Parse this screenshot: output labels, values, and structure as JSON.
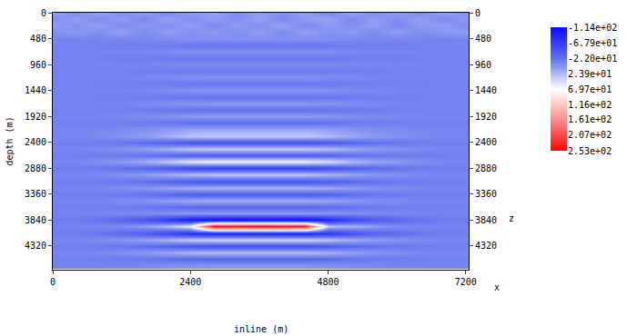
{
  "chart_data": {
    "type": "heatmap",
    "xlabel": "inline (m)",
    "ylabel": "depth (m)",
    "x_name": "x",
    "y_name": "z",
    "xlim": [
      0,
      7250
    ],
    "xticks": [
      0,
      2400,
      4800,
      7200
    ],
    "ylim": [
      0,
      4760
    ],
    "yticks": [
      0,
      480,
      960,
      1440,
      1920,
      2400,
      2880,
      3360,
      3840,
      4320
    ],
    "x": [
      0,
      400,
      800,
      1200,
      1600,
      2000,
      2400,
      2800,
      3200,
      3600,
      4000,
      4400,
      4800,
      5200,
      5600,
      6000,
      6400,
      6800,
      7200
    ],
    "y": [
      0,
      120,
      240,
      360,
      480,
      600,
      720,
      840,
      960,
      1080,
      1200,
      1320,
      1440,
      1560,
      1680,
      1800,
      1920,
      2040,
      2160,
      2280,
      2400,
      2520,
      2640,
      2760,
      2880,
      3000,
      3120,
      3240,
      3360,
      3480,
      3600,
      3720,
      3840,
      3960,
      4080,
      4200,
      4320,
      4440,
      4560,
      4680
    ],
    "cells": [
      [
        8,
        -6,
        10,
        -4,
        6,
        -8,
        4,
        10,
        -6,
        8,
        -4,
        6,
        -8,
        10,
        -4,
        6,
        -6,
        8,
        -2
      ],
      [
        -4,
        8,
        -6,
        6,
        -8,
        10,
        -4,
        6,
        -2,
        8,
        -6,
        4,
        10,
        -8,
        6,
        -4,
        8,
        -6,
        4
      ],
      [
        6,
        -2,
        8,
        -6,
        4,
        -4,
        8,
        -8,
        6,
        -4,
        10,
        -6,
        4,
        -2,
        8,
        -8,
        4,
        6,
        -4
      ],
      [
        -2,
        4,
        -4,
        8,
        -6,
        6,
        -2,
        4,
        -4,
        6,
        -6,
        8,
        -2,
        4,
        -6,
        6,
        -4,
        2,
        6
      ],
      [
        -10,
        -10,
        -9,
        -8,
        -7,
        -5,
        -3,
        -2,
        -2,
        -2,
        -2,
        -2,
        -4,
        -6,
        -8,
        -8,
        -9,
        -10,
        -10
      ],
      [
        -10,
        -10,
        -11,
        -12,
        -13,
        -15,
        -17,
        -18,
        -18,
        -18,
        -18,
        -18,
        -16,
        -14,
        -12,
        -12,
        -11,
        -10,
        -10
      ],
      [
        -10,
        -10,
        -9,
        -8,
        -7,
        -5,
        -3,
        -2,
        -2,
        -2,
        -2,
        -2,
        -4,
        -6,
        -8,
        -8,
        -9,
        -10,
        -10
      ],
      [
        -10,
        -10,
        -11,
        -12,
        -13,
        -15,
        -17,
        -18,
        -18,
        -18,
        -18,
        -18,
        -16,
        -14,
        -12,
        -12,
        -11,
        -10,
        -10
      ],
      [
        -10,
        -10,
        -9,
        -9,
        -8,
        -6,
        -5,
        -4,
        -4,
        -4,
        -4,
        -4,
        -5,
        -7,
        -8,
        -9,
        -9,
        -10,
        -10
      ],
      [
        -10,
        -10,
        -11,
        -11,
        -12,
        -14,
        -15,
        -16,
        -16,
        -16,
        -16,
        -16,
        -15,
        -13,
        -12,
        -11,
        -11,
        -10,
        -10
      ],
      [
        -10,
        -10,
        -9,
        -8,
        -7,
        -5,
        -3,
        -2,
        -2,
        -2,
        -2,
        -2,
        -4,
        -6,
        -8,
        -8,
        -9,
        -10,
        -10
      ],
      [
        -10,
        -10,
        -11,
        -12,
        -13,
        -15,
        -17,
        -18,
        -18,
        -18,
        -18,
        -18,
        -16,
        -14,
        -12,
        -12,
        -11,
        -10,
        -10
      ],
      [
        -10,
        -10,
        -9,
        -8,
        -7,
        -4,
        -1,
        0,
        0,
        0,
        0,
        0,
        -2,
        -5,
        -7,
        -8,
        -9,
        -10,
        -10
      ],
      [
        -10,
        -10,
        -11,
        -12,
        -14,
        -16,
        -19,
        -20,
        -20,
        -20,
        -20,
        -20,
        -18,
        -15,
        -13,
        -12,
        -11,
        -10,
        -10
      ],
      [
        -9,
        -9,
        -9,
        -8,
        -6,
        -3,
        1,
        2,
        2,
        2,
        2,
        2,
        0,
        -4,
        -6,
        -8,
        -9,
        -9,
        -9
      ],
      [
        -11,
        -11,
        -11,
        -12,
        -14,
        -17,
        -21,
        -22,
        -22,
        -22,
        -22,
        -22,
        -20,
        -16,
        -14,
        -12,
        -11,
        -11,
        -11
      ],
      [
        -9,
        -9,
        -9,
        -7,
        -5,
        -2,
        3,
        4,
        4,
        4,
        4,
        4,
        1,
        -3,
        -6,
        -7,
        -9,
        -9,
        -9
      ],
      [
        -11,
        -11,
        -11,
        -13,
        -15,
        -18,
        -23,
        -24,
        -24,
        -24,
        -24,
        -24,
        -21,
        -17,
        -14,
        -13,
        -11,
        -11,
        -11
      ],
      [
        -9,
        -9,
        -8,
        -6,
        -3,
        2,
        8,
        10,
        10,
        10,
        10,
        10,
        6,
        0,
        -4,
        -6,
        -8,
        -9,
        -9
      ],
      [
        -8,
        -8,
        -6,
        -1,
        6,
        17,
        31,
        35,
        35,
        35,
        35,
        35,
        26,
        13,
        4,
        -1,
        -6,
        -8,
        -8
      ],
      [
        -12,
        -12,
        -14,
        -18,
        -24,
        -34,
        -46,
        -50,
        -50,
        -50,
        -50,
        -50,
        -42,
        -30,
        -22,
        -18,
        -14,
        -12,
        -12
      ],
      [
        -8,
        -8,
        -6,
        -1,
        6,
        17,
        31,
        35,
        35,
        35,
        35,
        35,
        26,
        13,
        4,
        -1,
        -6,
        -8,
        -8
      ],
      [
        -12,
        -12,
        -13,
        -16,
        -21,
        -28,
        -37,
        -40,
        -40,
        -40,
        -40,
        -40,
        -34,
        -25,
        -19,
        -16,
        -13,
        -12,
        -12
      ],
      [
        -7,
        -7,
        -3,
        4,
        15,
        32,
        53,
        60,
        60,
        60,
        60,
        60,
        46,
        25,
        11,
        4,
        -3,
        -7,
        -7
      ],
      [
        -13,
        -13,
        -16,
        -21,
        -29,
        -43,
        -60,
        -65,
        -65,
        -65,
        -65,
        -65,
        -54,
        -38,
        -27,
        -21,
        -16,
        -13,
        -13
      ],
      [
        -8,
        -8,
        -6,
        -2,
        4,
        14,
        26,
        30,
        30,
        30,
        30,
        30,
        22,
        10,
        2,
        -2,
        -6,
        -8,
        -8
      ],
      [
        -12,
        -12,
        -14,
        -17,
        -22,
        -31,
        -42,
        -45,
        -45,
        -45,
        -45,
        -45,
        -38,
        -28,
        -21,
        -17,
        -14,
        -12,
        -12
      ],
      [
        -9,
        -9,
        -7,
        -4,
        1,
        8,
        17,
        20,
        20,
        20,
        20,
        20,
        14,
        5,
        -1,
        -4,
        -7,
        -9,
        -9
      ],
      [
        -12,
        -12,
        -13,
        -16,
        -21,
        -28,
        -37,
        -40,
        -40,
        -40,
        -40,
        -40,
        -34,
        -25,
        -19,
        -16,
        -13,
        -12,
        -12
      ],
      [
        -9,
        -9,
        -8,
        -5,
        -1,
        5,
        13,
        15,
        15,
        15,
        15,
        15,
        10,
        3,
        -3,
        -5,
        -8,
        -9,
        -9
      ],
      [
        -11,
        -11,
        -12,
        -14,
        -17,
        -22,
        -28,
        -30,
        -30,
        -30,
        -30,
        -30,
        -26,
        -20,
        -16,
        -14,
        -12,
        -11,
        -11
      ],
      [
        -9,
        -9,
        -9,
        -7,
        -5,
        -1,
        4,
        5,
        5,
        5,
        5,
        5,
        2,
        -3,
        -6,
        -7,
        -9,
        -9,
        -9
      ],
      [
        -15,
        -15,
        -20,
        -30,
        -45,
        -70,
        -100,
        -110,
        -110,
        -110,
        -110,
        -110,
        -90,
        -60,
        -40,
        -30,
        -20,
        -15,
        -15
      ],
      [
        -10,
        -10,
        -8,
        -5,
        5,
        25,
        60,
        250,
        245,
        253,
        248,
        240,
        30,
        20,
        5,
        -5,
        -8,
        -10,
        -10
      ],
      [
        -14,
        -14,
        -18,
        -26,
        -38,
        -58,
        -82,
        -90,
        -90,
        -90,
        -90,
        -90,
        -74,
        -50,
        -34,
        -26,
        -18,
        -14,
        -14
      ],
      [
        -8,
        -8,
        -5,
        0,
        8,
        20,
        35,
        40,
        40,
        40,
        40,
        40,
        30,
        15,
        5,
        0,
        -5,
        -8,
        -8
      ],
      [
        -12,
        -12,
        -14,
        -18,
        -24,
        -34,
        -46,
        -50,
        -50,
        -50,
        -50,
        -50,
        -42,
        -30,
        -22,
        -18,
        -14,
        -12,
        -12
      ],
      [
        -8,
        -8,
        -7,
        -3,
        2,
        11,
        22,
        25,
        25,
        25,
        25,
        25,
        18,
        8,
        1,
        -3,
        -7,
        -8,
        -8
      ],
      [
        -11,
        -11,
        -12,
        -14,
        -17,
        -22,
        -28,
        -30,
        -30,
        -30,
        -30,
        -30,
        -26,
        -20,
        -16,
        -14,
        -12,
        -11,
        -11
      ],
      [
        -10,
        -10,
        -9,
        -8,
        -7,
        -4,
        -1,
        0,
        0,
        0,
        0,
        0,
        -2,
        -5,
        -7,
        -8,
        -9,
        -10,
        -10
      ]
    ],
    "colorbar": {
      "range": [
        -114,
        253
      ],
      "ticks": [
        {
          "value": -114,
          "label": "-1.14e+02"
        },
        {
          "value": -67.9,
          "label": "-6.79e+01"
        },
        {
          "value": -22,
          "label": "-2.20e+01"
        },
        {
          "value": 23.9,
          "label": "2.39e+01"
        },
        {
          "value": 69.7,
          "label": "6.97e+01"
        },
        {
          "value": 116,
          "label": "1.16e+02"
        },
        {
          "value": 161,
          "label": "1.61e+02"
        },
        {
          "value": 207,
          "label": "2.07e+02"
        },
        {
          "value": 253,
          "label": "2.53e+02"
        }
      ]
    }
  }
}
